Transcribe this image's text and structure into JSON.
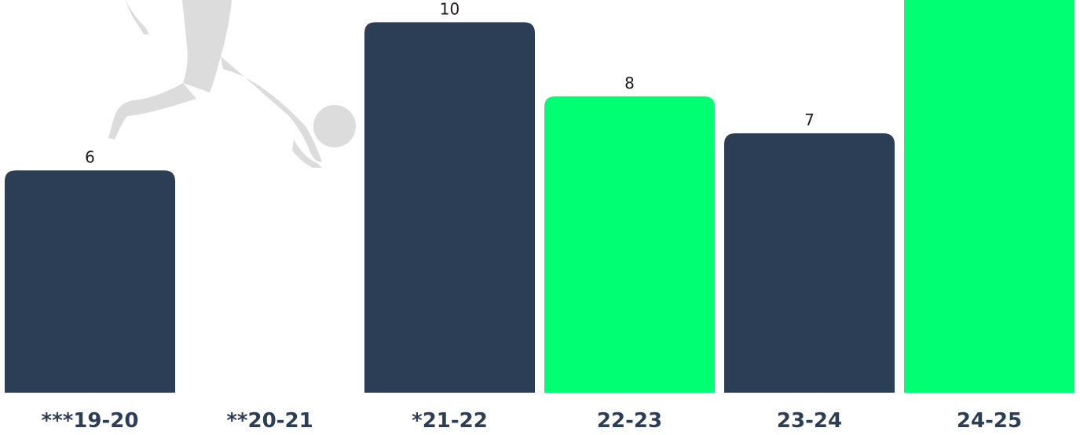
{
  "chart_data": {
    "type": "bar",
    "categories": [
      "***19-20",
      "**20-21",
      "*21-22",
      "22-23",
      "23-24",
      "24-25"
    ],
    "values": [
      6,
      null,
      10,
      8,
      7,
      null
    ],
    "value_labels": [
      "6",
      "",
      "10",
      "8",
      "7",
      ""
    ],
    "ylim": [
      0,
      10.6
    ],
    "grid": false,
    "bar_colors": [
      "#2c3e55",
      "#2c3e55",
      "#2c3e55",
      "#00ff73",
      "#2c3e55",
      "#00ff73"
    ],
    "background_icon": "footballer-kicking-ball-icon",
    "background_icon_color": "#dcdcdc"
  }
}
